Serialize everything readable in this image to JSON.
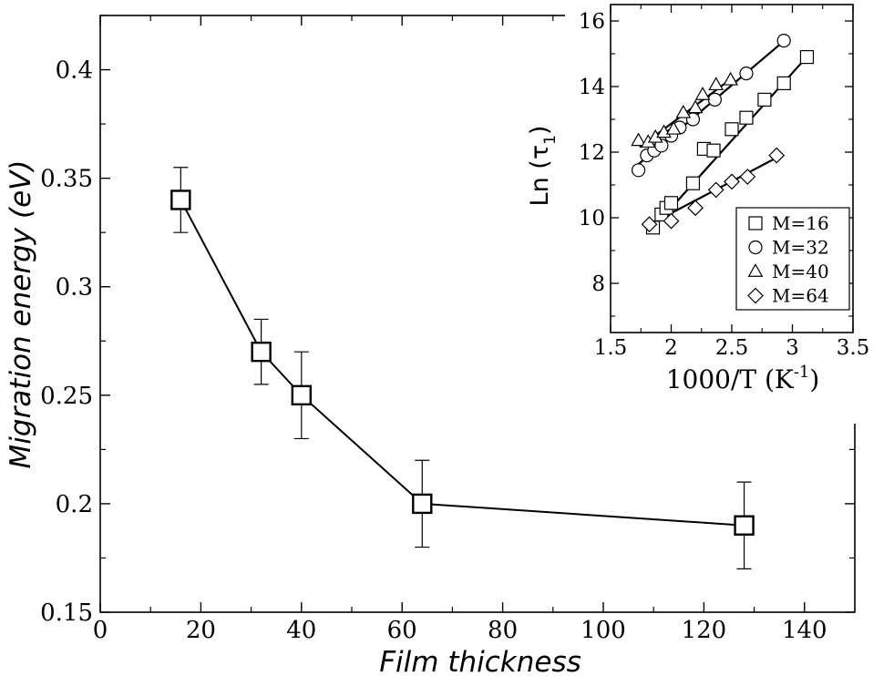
{
  "chart_data": [
    {
      "type": "line",
      "title": "",
      "xlabel": "Film thickness",
      "ylabel": "Migration energy (eV)",
      "xlim": [
        0,
        150
      ],
      "ylim": [
        0.15,
        0.425
      ],
      "xticks": [
        0,
        20,
        40,
        60,
        80,
        100,
        120,
        140
      ],
      "yticks": [
        0.15,
        0.2,
        0.25,
        0.3,
        0.35,
        0.4
      ],
      "xtick_labels": [
        "0",
        "20",
        "40",
        "60",
        "80",
        "100",
        "120",
        "140"
      ],
      "ytick_labels": [
        "0.15",
        "0.2",
        "0.25",
        "0.3",
        "0.35",
        "0.4"
      ],
      "grid": false,
      "series": [
        {
          "marker": "square",
          "x": [
            16,
            32,
            40,
            64,
            128
          ],
          "y": [
            0.34,
            0.27,
            0.25,
            0.2,
            0.19
          ],
          "yerr": [
            0.015,
            0.015,
            0.02,
            0.02,
            0.02
          ]
        }
      ]
    },
    {
      "type": "scatter",
      "title": "",
      "xlabel_main": "1000/T (K",
      "xlabel_sup": "-1",
      "xlabel_close": ")",
      "ylabel_main": "Ln (τ",
      "ylabel_sub": "1",
      "ylabel_close": ")",
      "xlim": [
        1.5,
        3.5
      ],
      "ylim": [
        6.5,
        16.5
      ],
      "xticks": [
        1.5,
        2,
        2.5,
        3,
        3.5
      ],
      "yticks": [
        8,
        10,
        12,
        14,
        16
      ],
      "xtick_labels": [
        "1.5",
        "2",
        "2.5",
        "3",
        "3.5"
      ],
      "ytick_labels": [
        "8",
        "10",
        "12",
        "14",
        "16"
      ],
      "legend_position": "bottom-right",
      "grid": false,
      "series": [
        {
          "name": "M=16",
          "marker": "square",
          "x": [
            1.85,
            1.92,
            1.96,
            2.0,
            2.18,
            2.27,
            2.35,
            2.5,
            2.62,
            2.77,
            2.93,
            3.12
          ],
          "y": [
            9.7,
            10.1,
            10.3,
            10.45,
            11.05,
            12.1,
            12.05,
            12.7,
            13.05,
            13.6,
            14.1,
            14.9
          ],
          "fit": [
            [
              1.83,
              9.6
            ],
            [
              3.13,
              14.95
            ]
          ]
        },
        {
          "name": "M=32",
          "marker": "circle",
          "x": [
            1.73,
            1.8,
            1.86,
            1.92,
            2.0,
            2.07,
            2.18,
            2.36,
            2.62,
            2.93
          ],
          "y": [
            11.45,
            11.9,
            12.05,
            12.2,
            12.5,
            12.75,
            13.0,
            13.6,
            14.4,
            15.4
          ],
          "fit": [
            [
              1.72,
              11.6
            ],
            [
              2.95,
              15.45
            ]
          ]
        },
        {
          "name": "M=40",
          "marker": "triangle",
          "x": [
            1.73,
            1.81,
            1.87,
            1.94,
            2.02,
            2.1,
            2.2,
            2.26,
            2.37,
            2.49
          ],
          "y": [
            12.35,
            12.3,
            12.45,
            12.6,
            12.7,
            13.2,
            13.35,
            13.75,
            14.05,
            14.2
          ],
          "fit": [
            [
              1.74,
              12.15
            ],
            [
              2.5,
              14.25
            ]
          ]
        },
        {
          "name": "M=64",
          "marker": "diamond",
          "x": [
            1.82,
            2.0,
            2.2,
            2.37,
            2.5,
            2.63,
            2.87
          ],
          "y": [
            9.8,
            9.9,
            10.3,
            10.85,
            11.1,
            11.25,
            11.9
          ],
          "fit": [
            [
              1.8,
              9.75
            ],
            [
              2.88,
              11.85
            ]
          ]
        }
      ]
    }
  ]
}
